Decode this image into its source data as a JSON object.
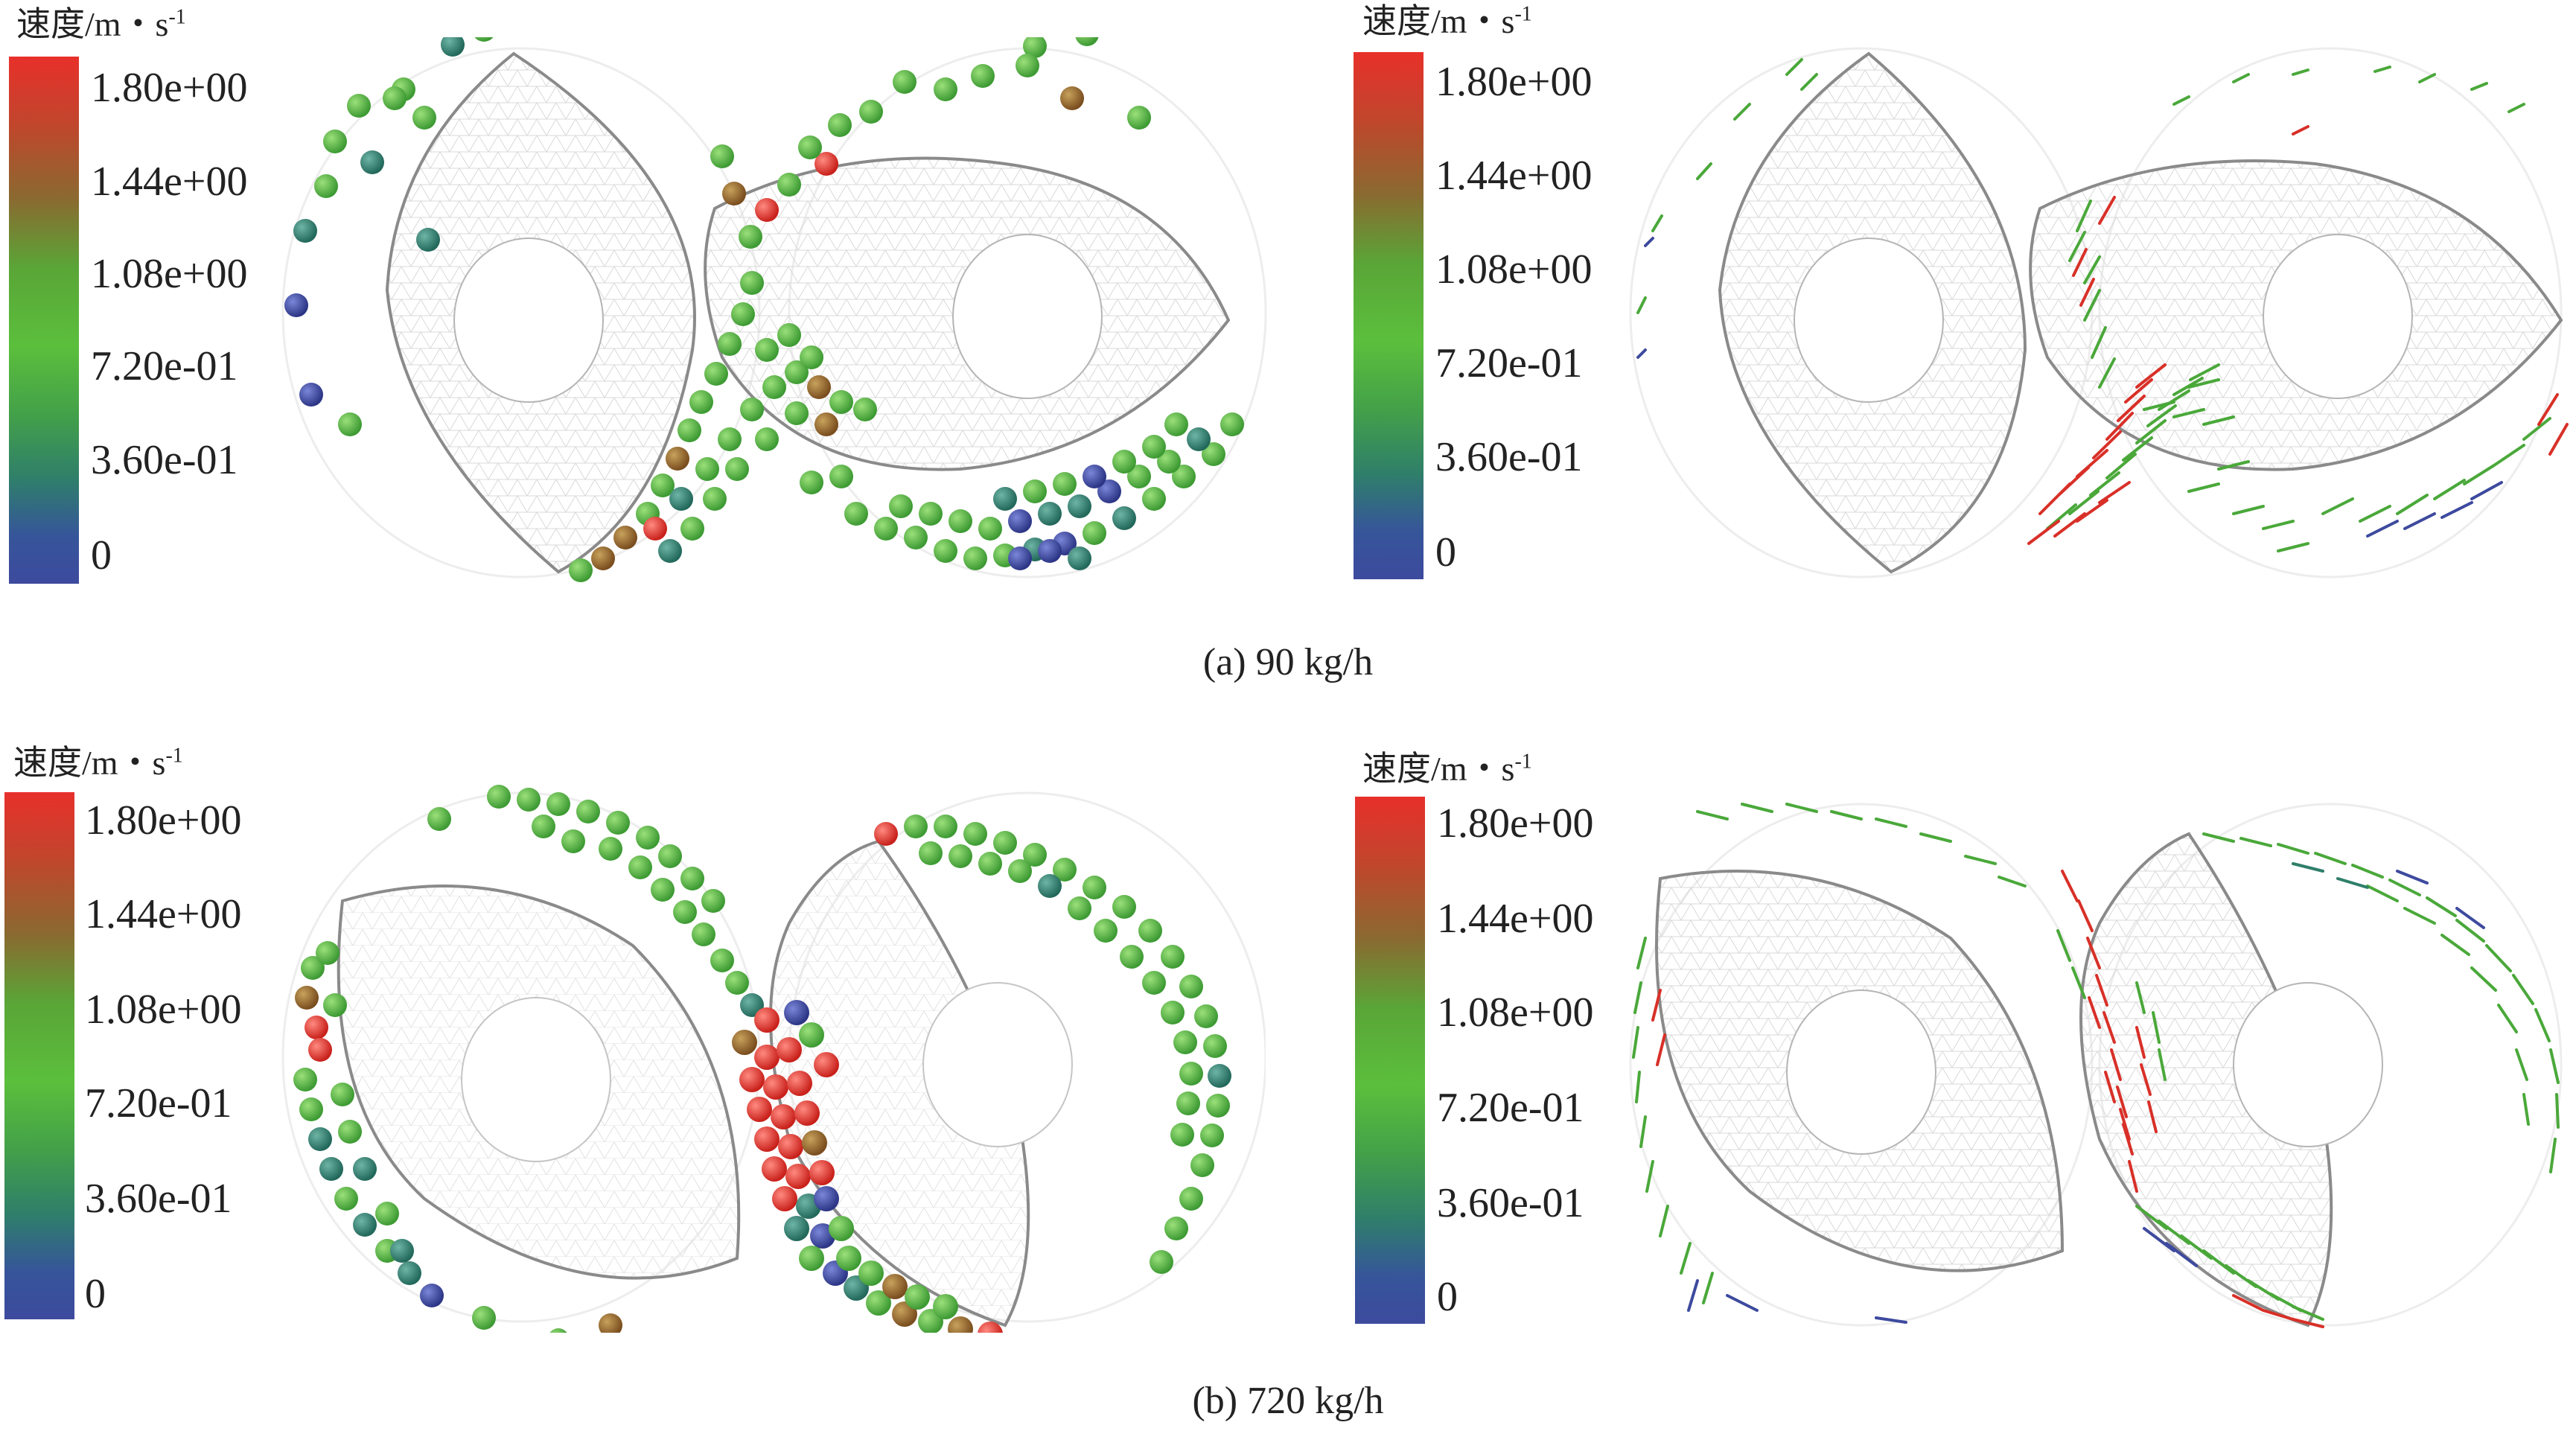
{
  "legend": {
    "title_main": "速度/m・s",
    "title_sup": "-1",
    "ticks": [
      "1.80e+00",
      "1.44e+00",
      "1.08e+00",
      "7.20e-01",
      "3.60e-01",
      "0"
    ]
  },
  "captions": {
    "a": "(a) 90 kg/h",
    "b": "(b) 720 kg/h"
  },
  "colors": {
    "high": "#e8302b",
    "mid_high": "#8a6a30",
    "mid": "#5bbf3c",
    "mid_low": "#2f7f6a",
    "low": "#3d4a9e"
  }
}
